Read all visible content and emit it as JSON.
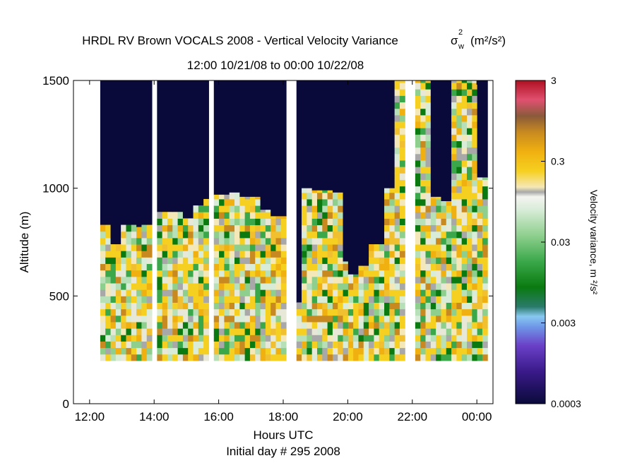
{
  "title": {
    "line1_prefix": "HRDL RV Brown VOCALS 2008 - Vertical Velocity Variance",
    "sigma_symbol": "σ",
    "sigma_sub": "w",
    "sigma_sup": "2",
    "units": "(m²/s²)",
    "line2": "12:00 10/21/08 to 00:00 10/22/08"
  },
  "chart_data": {
    "type": "heatmap",
    "xlabel": "Hours UTC",
    "xlabel2": "Initial day # 295  2008",
    "ylabel": "Altitude (m)",
    "xlim": [
      11.5,
      24.5
    ],
    "ylim": [
      0,
      1500
    ],
    "x_ticks": [
      {
        "value": 12,
        "label": "12:00"
      },
      {
        "value": 14,
        "label": "14:00"
      },
      {
        "value": 16,
        "label": "16:00"
      },
      {
        "value": 18,
        "label": "18:00"
      },
      {
        "value": 20,
        "label": "20:00"
      },
      {
        "value": 22,
        "label": "22:00"
      },
      {
        "value": 24,
        "label": "00:00"
      }
    ],
    "y_ticks": [
      {
        "value": 0,
        "label": "0"
      },
      {
        "value": 500,
        "label": "500"
      },
      {
        "value": 1000,
        "label": "1000"
      },
      {
        "value": 1500,
        "label": "1500"
      }
    ],
    "colorbar": {
      "label": "Velocity variance, m ²/s²",
      "scale": "log",
      "range": [
        0.0003,
        3
      ],
      "ticks": [
        {
          "value": 3,
          "label": "3"
        },
        {
          "value": 0.3,
          "label": "0.3"
        },
        {
          "value": 0.03,
          "label": "0.03"
        },
        {
          "value": 0.003,
          "label": "0.003"
        },
        {
          "value": 0.0003,
          "label": "0.0003"
        }
      ]
    },
    "data_floor_altitude_m": 200,
    "data_gaps_hours": [
      [
        12.0,
        12.33
      ],
      [
        14.0,
        14.05
      ],
      [
        15.35,
        15.4
      ],
      [
        15.75,
        15.78
      ],
      [
        18.1,
        18.45
      ],
      [
        21.8,
        22.1
      ]
    ],
    "boundary_layer_top_m": [
      {
        "t": 12.33,
        "z": 830
      },
      {
        "t": 12.65,
        "z": 740
      },
      {
        "t": 12.95,
        "z": 830
      },
      {
        "t": 13.3,
        "z": 820
      },
      {
        "t": 13.6,
        "z": 830
      },
      {
        "t": 14.05,
        "z": 890
      },
      {
        "t": 14.4,
        "z": 890
      },
      {
        "t": 14.75,
        "z": 860
      },
      {
        "t": 15.1,
        "z": 920
      },
      {
        "t": 15.4,
        "z": 950
      },
      {
        "t": 15.8,
        "z": 970
      },
      {
        "t": 16.2,
        "z": 980
      },
      {
        "t": 16.6,
        "z": 960
      },
      {
        "t": 16.95,
        "z": 960
      },
      {
        "t": 17.25,
        "z": 900
      },
      {
        "t": 17.6,
        "z": 870
      },
      {
        "t": 17.95,
        "z": 470
      },
      {
        "t": 18.45,
        "z": 1000
      },
      {
        "t": 18.75,
        "z": 990
      },
      {
        "t": 19.1,
        "z": 990
      },
      {
        "t": 19.4,
        "z": 980
      },
      {
        "t": 19.7,
        "z": 660
      },
      {
        "t": 20.0,
        "z": 600
      },
      {
        "t": 20.3,
        "z": 640
      },
      {
        "t": 20.65,
        "z": 740
      },
      {
        "t": 21.0,
        "z": 1000
      },
      {
        "t": 21.35,
        "z": 1500
      },
      {
        "t": 21.75,
        "z": 1500
      },
      {
        "t": 22.1,
        "z": 1500
      },
      {
        "t": 22.5,
        "z": 960
      },
      {
        "t": 22.85,
        "z": 940
      },
      {
        "t": 23.2,
        "z": 1500
      },
      {
        "t": 23.65,
        "z": 1500
      },
      {
        "t": 24.0,
        "z": 1050
      },
      {
        "t": 24.3,
        "z": 1050
      }
    ],
    "grid": false
  }
}
